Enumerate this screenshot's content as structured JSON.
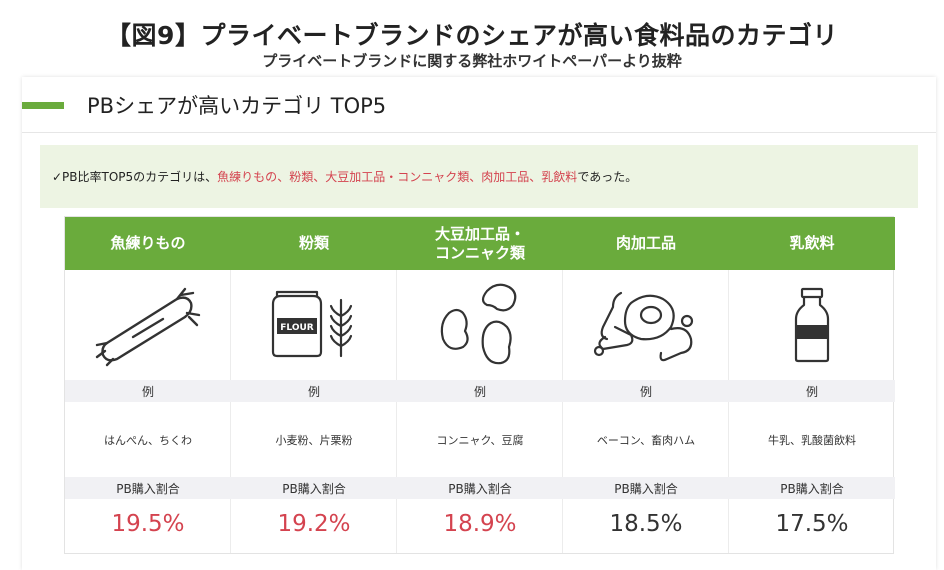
{
  "title": "【図9】プライベートブランドのシェアが高い食料品のカテゴリ",
  "subtitle": "プライベートブランドに関する弊社ホワイトペーパーより抜粋",
  "section_title": "PBシェアが高いカテゴリ TOP5",
  "note": {
    "prefix": "✓PB比率TOP5のカテゴリは、",
    "items": [
      "魚練りもの",
      "粉類",
      "大豆加工品・コンニャク類",
      "肉加工品",
      "乳飲料"
    ],
    "separator": "、",
    "suffix": "であった。"
  },
  "label_example": "例",
  "label_ratio": "PB購入割合",
  "categories": [
    {
      "name": "魚練りもの",
      "name2": "",
      "icon": "fish-sausage-icon",
      "example": "はんぺん、ちくわ",
      "ratio": "19.5%",
      "highlight": true
    },
    {
      "name": "粉類",
      "name2": "",
      "icon": "flour-icon",
      "example": "小麦粉、片栗粉",
      "ratio": "19.2%",
      "highlight": true
    },
    {
      "name": "大豆加工品・",
      "name2": "コンニャク類",
      "icon": "beans-icon",
      "example": "コンニャク、豆腐",
      "ratio": "18.9%",
      "highlight": true
    },
    {
      "name": "肉加工品",
      "name2": "",
      "icon": "meat-icon",
      "example": "ベーコン、畜肉ハム",
      "ratio": "18.5%",
      "highlight": false
    },
    {
      "name": "乳飲料",
      "name2": "",
      "icon": "milk-bottle-icon",
      "example": "牛乳、乳酸菌飲料",
      "ratio": "17.5%",
      "highlight": false
    }
  ],
  "colors": {
    "accent": "#6aab3c",
    "highlight": "#d4434f",
    "note_bg": "#edf4e3"
  }
}
